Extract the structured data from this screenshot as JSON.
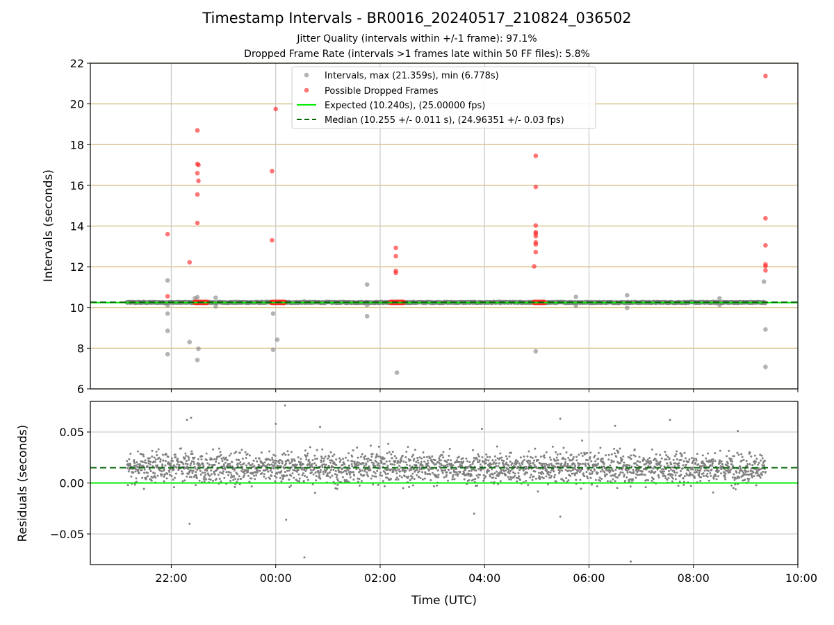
{
  "figure": {
    "title": "Timestamp Intervals - BR0016_20240517_210824_036502",
    "subtitle_1": "Jitter Quality (intervals within +/-1 frame): 97.1%",
    "subtitle_2": "Dropped Frame Rate (intervals >1 frames late within 50 FF files): 5.8%"
  },
  "colors": {
    "intervals": "#808080",
    "dropped": "#ff2a2a",
    "expected": "#00ee00",
    "median": "#006400",
    "hgrid_top": "#d4b97a",
    "grid": "#c8c8c8"
  },
  "chart_data": [
    {
      "type": "scatter",
      "panel": "intervals",
      "xlabel": "",
      "ylabel": "Intervals (seconds)",
      "x_unit": "hours relative to 00:00 UTC (2024-05-18)",
      "xlim": [
        -3.55,
        10.0
      ],
      "ylim": [
        6,
        22
      ],
      "yticks": [
        6,
        8,
        10,
        12,
        14,
        16,
        18,
        20,
        22
      ],
      "x_tick_values": [
        -2,
        0,
        2,
        4,
        6,
        8,
        10
      ],
      "grid": "on",
      "legend_placement": "top-center",
      "legend": [
        "Intervals, max (21.359s), min (6.778s)",
        "Possible Dropped Frames",
        "Expected (10.240s), (25.00000 fps)",
        "Median (10.255 +/- 0.011 s), (24.96351 +/- 0.03 fps)"
      ],
      "expected_interval": 10.24,
      "median_interval": 10.255,
      "baseline": {
        "x_start": -2.85,
        "x_end": 9.38,
        "value": 10.25
      },
      "series": [
        {
          "name": "Intervals, max (21.359s), min (6.778s)",
          "points": [
            {
              "x": -2.07,
              "y": 11.33
            },
            {
              "x": -2.07,
              "y": 10.1
            },
            {
              "x": -2.07,
              "y": 9.7
            },
            {
              "x": -2.07,
              "y": 8.85
            },
            {
              "x": -2.07,
              "y": 7.7
            },
            {
              "x": -1.65,
              "y": 8.3
            },
            {
              "x": -1.55,
              "y": 10.45
            },
            {
              "x": -1.5,
              "y": 10.5
            },
            {
              "x": -1.48,
              "y": 7.97
            },
            {
              "x": -1.5,
              "y": 7.42
            },
            {
              "x": -1.15,
              "y": 10.48
            },
            {
              "x": -1.15,
              "y": 10.05
            },
            {
              "x": -0.05,
              "y": 9.7
            },
            {
              "x": -0.05,
              "y": 7.92
            },
            {
              "x": 0.03,
              "y": 8.42
            },
            {
              "x": 0.55,
              "y": 10.3
            },
            {
              "x": 1.75,
              "y": 11.13
            },
            {
              "x": 1.75,
              "y": 10.12
            },
            {
              "x": 1.75,
              "y": 9.57
            },
            {
              "x": 2.32,
              "y": 6.8
            },
            {
              "x": 4.98,
              "y": 7.85
            },
            {
              "x": 5.75,
              "y": 10.52
            },
            {
              "x": 5.75,
              "y": 10.08
            },
            {
              "x": 6.73,
              "y": 10.6
            },
            {
              "x": 6.73,
              "y": 9.98
            },
            {
              "x": 8.5,
              "y": 10.45
            },
            {
              "x": 8.5,
              "y": 10.12
            },
            {
              "x": 9.35,
              "y": 11.27
            },
            {
              "x": 9.38,
              "y": 8.92
            },
            {
              "x": 9.38,
              "y": 7.08
            }
          ]
        },
        {
          "name": "Possible Dropped Frames",
          "points": [
            {
              "x": -2.07,
              "y": 13.6
            },
            {
              "x": -2.07,
              "y": 10.55
            },
            {
              "x": -1.65,
              "y": 12.22
            },
            {
              "x": -1.5,
              "y": 18.7
            },
            {
              "x": -1.5,
              "y": 17.05
            },
            {
              "x": -1.48,
              "y": 17.0
            },
            {
              "x": -1.5,
              "y": 16.6
            },
            {
              "x": -1.48,
              "y": 16.22
            },
            {
              "x": -1.5,
              "y": 15.55
            },
            {
              "x": -1.5,
              "y": 14.15
            },
            {
              "x": -0.07,
              "y": 16.7
            },
            {
              "x": -0.07,
              "y": 13.3
            },
            {
              "x": 0.0,
              "y": 19.75
            },
            {
              "x": 2.3,
              "y": 12.93
            },
            {
              "x": 2.3,
              "y": 12.52
            },
            {
              "x": 2.3,
              "y": 11.8
            },
            {
              "x": 2.3,
              "y": 11.7
            },
            {
              "x": 4.98,
              "y": 17.45
            },
            {
              "x": 4.98,
              "y": 15.92
            },
            {
              "x": 4.98,
              "y": 14.03
            },
            {
              "x": 4.98,
              "y": 13.7
            },
            {
              "x": 4.98,
              "y": 13.63
            },
            {
              "x": 4.98,
              "y": 13.5
            },
            {
              "x": 4.98,
              "y": 13.2
            },
            {
              "x": 4.98,
              "y": 13.1
            },
            {
              "x": 4.98,
              "y": 12.72
            },
            {
              "x": 4.95,
              "y": 12.02
            },
            {
              "x": 9.38,
              "y": 21.37
            },
            {
              "x": 9.38,
              "y": 14.38
            },
            {
              "x": 9.38,
              "y": 13.05
            },
            {
              "x": 9.38,
              "y": 12.12
            },
            {
              "x": 9.38,
              "y": 12.03
            },
            {
              "x": 9.38,
              "y": 11.82
            }
          ],
          "clusters_at_baseline": [
            [
              -1.55,
              -1.3
            ],
            [
              -0.08,
              0.18
            ],
            [
              2.2,
              2.45
            ],
            [
              4.95,
              5.15
            ]
          ]
        }
      ]
    },
    {
      "type": "scatter",
      "panel": "residuals",
      "xlabel": "Time (UTC)",
      "ylabel": "Residuals (seconds)",
      "xlim": [
        -3.55,
        10.0
      ],
      "ylim": [
        -0.08,
        0.08
      ],
      "yticks": [
        -0.05,
        0.0,
        0.05
      ],
      "ytick_labels": [
        "−0.05",
        "0.00",
        "0.05"
      ],
      "xticks": [
        "22:00",
        "00:00",
        "02:00",
        "04:00",
        "06:00",
        "08:00",
        "10:00"
      ],
      "x_tick_values": [
        -2,
        0,
        2,
        4,
        6,
        8,
        10
      ],
      "grid": "on",
      "zero_line": 0.0,
      "median_line": 0.015,
      "x_range": [
        -2.85,
        9.38
      ],
      "bulk": {
        "mean": 0.015,
        "spread": 0.011,
        "count": 2400
      },
      "outliers": [
        {
          "x": -1.7,
          "y": 0.062
        },
        {
          "x": -1.62,
          "y": 0.064
        },
        {
          "x": -1.65,
          "y": -0.04
        },
        {
          "x": 0.0,
          "y": 0.058
        },
        {
          "x": 0.18,
          "y": 0.076
        },
        {
          "x": 0.2,
          "y": -0.036
        },
        {
          "x": 0.55,
          "y": -0.073
        },
        {
          "x": 0.85,
          "y": 0.055
        },
        {
          "x": 3.95,
          "y": 0.053
        },
        {
          "x": 3.8,
          "y": -0.03
        },
        {
          "x": 5.45,
          "y": 0.063
        },
        {
          "x": 5.45,
          "y": -0.033
        },
        {
          "x": 6.5,
          "y": 0.056
        },
        {
          "x": 6.8,
          "y": -0.077
        },
        {
          "x": 7.55,
          "y": 0.062
        },
        {
          "x": 8.85,
          "y": 0.051
        }
      ]
    }
  ]
}
